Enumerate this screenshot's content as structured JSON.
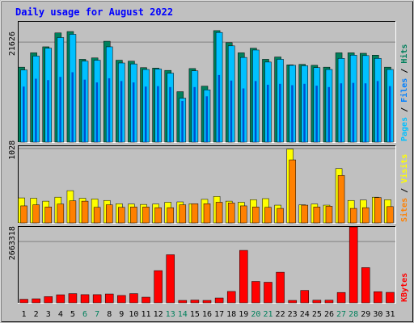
{
  "title": "Daily usage for August 2022",
  "colors": {
    "background": "#c0c0c0",
    "title": "#0000ff",
    "hits": "#00805c",
    "files": "#0080ff",
    "pages": "#00c0ff",
    "visits": "#ffff00",
    "sites": "#ff8000",
    "kbytes": "#ff0000",
    "weekend_label": "#00805c",
    "weekday_label": "#000080"
  },
  "chart_data": [
    {
      "type": "bar",
      "panel": "hits-files-pages",
      "ylabel_parts": [
        "Pages",
        "Files",
        "Hits"
      ],
      "ytick_label": "21626",
      "ytick_value": 21626,
      "ylim": [
        0,
        26000
      ],
      "categories": [
        "1",
        "2",
        "3",
        "4",
        "5",
        "6",
        "7",
        "8",
        "9",
        "10",
        "11",
        "12",
        "13",
        "14",
        "15",
        "16",
        "17",
        "18",
        "19",
        "20",
        "21",
        "22",
        "23",
        "24",
        "25",
        "26",
        "27",
        "28",
        "29",
        "30",
        "31"
      ],
      "series": [
        {
          "name": "Hits",
          "values": [
            16200,
            19300,
            20600,
            23600,
            23900,
            17900,
            18200,
            21800,
            17700,
            17500,
            16100,
            16000,
            15500,
            10900,
            15900,
            12100,
            24100,
            21500,
            19300,
            20300,
            17900,
            18400,
            16700,
            16800,
            16600,
            16200,
            19300,
            19300,
            19200,
            18800,
            16200
          ]
        },
        {
          "name": "Files",
          "values": [
            12000,
            13700,
            13400,
            14100,
            15100,
            13500,
            12900,
            13800,
            13200,
            12900,
            12000,
            12100,
            11900,
            8900,
            11900,
            9900,
            14500,
            13300,
            11600,
            13200,
            12400,
            12600,
            12300,
            12600,
            12200,
            11900,
            12700,
            12800,
            12700,
            13200,
            12100
          ]
        },
        {
          "name": "Pages",
          "values": [
            15600,
            18600,
            20300,
            22600,
            23300,
            17500,
            17700,
            20600,
            17100,
            16900,
            15700,
            15800,
            14900,
            9500,
            15400,
            11300,
            23700,
            20800,
            18300,
            19900,
            17300,
            17900,
            16600,
            16500,
            16100,
            15700,
            18100,
            18800,
            18700,
            18100,
            15700
          ]
        }
      ]
    },
    {
      "type": "bar",
      "panel": "sites-visits",
      "ylabel_parts": [
        "Sites",
        "Visits"
      ],
      "ytick_label": "1028",
      "ytick_value": 1028,
      "ylim": [
        0,
        1060
      ],
      "categories": [
        "1",
        "2",
        "3",
        "4",
        "5",
        "6",
        "7",
        "8",
        "9",
        "10",
        "11",
        "12",
        "13",
        "14",
        "15",
        "16",
        "17",
        "18",
        "19",
        "20",
        "21",
        "22",
        "23",
        "24",
        "25",
        "26",
        "27",
        "28",
        "29",
        "30",
        "31"
      ],
      "series": [
        {
          "name": "Visits",
          "values": [
            345,
            340,
            300,
            355,
            445,
            340,
            330,
            310,
            265,
            260,
            255,
            260,
            285,
            290,
            265,
            325,
            365,
            300,
            285,
            320,
            335,
            245,
            1020,
            250,
            260,
            245,
            750,
            310,
            315,
            355,
            320
          ]
        },
        {
          "name": "Sites",
          "values": [
            235,
            250,
            220,
            260,
            305,
            300,
            215,
            250,
            215,
            220,
            220,
            210,
            210,
            250,
            265,
            265,
            285,
            275,
            235,
            220,
            215,
            200,
            870,
            245,
            220,
            230,
            655,
            200,
            210,
            350,
            225
          ]
        }
      ]
    },
    {
      "type": "bar",
      "panel": "kbytes",
      "ylabel_parts": [
        "KBytes"
      ],
      "ytick_label": "2663318",
      "ytick_value": 2663318,
      "ylim": [
        0,
        3300000
      ],
      "categories": [
        "1",
        "2",
        "3",
        "4",
        "5",
        "6",
        "7",
        "8",
        "9",
        "10",
        "11",
        "12",
        "13",
        "14",
        "15",
        "16",
        "17",
        "18",
        "19",
        "20",
        "21",
        "22",
        "23",
        "24",
        "25",
        "26",
        "27",
        "28",
        "29",
        "30",
        "31"
      ],
      "series": [
        {
          "name": "KBytes",
          "values": [
            155000,
            175000,
            270000,
            350000,
            400000,
            355000,
            355000,
            385000,
            320000,
            400000,
            245000,
            1400000,
            2090000,
            105000,
            120000,
            105000,
            210000,
            495000,
            2280000,
            930000,
            895000,
            1330000,
            105000,
            540000,
            115000,
            115000,
            450000,
            3300000,
            1530000,
            485000,
            455000
          ]
        }
      ]
    }
  ],
  "x_labels": {
    "days": [
      "1",
      "2",
      "3",
      "4",
      "5",
      "6",
      "7",
      "8",
      "9",
      "10",
      "11",
      "12",
      "13",
      "14",
      "15",
      "16",
      "17",
      "18",
      "19",
      "20",
      "21",
      "22",
      "23",
      "24",
      "25",
      "26",
      "27",
      "28",
      "29",
      "30",
      "31"
    ],
    "weekend_days": [
      "6",
      "7",
      "13",
      "14",
      "20",
      "21",
      "27",
      "28"
    ]
  },
  "ylabel_separator": " / "
}
